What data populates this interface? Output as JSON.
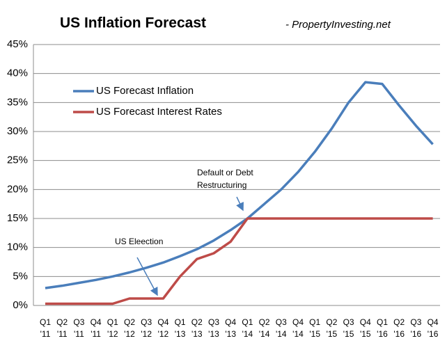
{
  "chart_data": {
    "type": "line",
    "title": "US Inflation Forecast",
    "subtitle": "- PropertyInvesting.net",
    "categories": [
      "Q1 '11",
      "Q2 '11",
      "Q3 '11",
      "Q4 '11",
      "Q1 '12",
      "Q2 '12",
      "Q3 '12",
      "Q4 '12",
      "Q1 '13",
      "Q2 '13",
      "Q3 '13",
      "Q4 '13",
      "Q1 '14",
      "Q2 '14",
      "Q3 '14",
      "Q4 '14",
      "Q1 '15",
      "Q2 '15",
      "Q3 '15",
      "Q4 '15",
      "Q1 '16",
      "Q2 '16",
      "Q3 '16",
      "Q4 '16"
    ],
    "series": [
      {
        "name": "US Forecast Inflation",
        "color": "#4a7ebb",
        "values": [
          3.0,
          3.4,
          3.9,
          4.4,
          5.0,
          5.7,
          6.5,
          7.4,
          8.5,
          9.7,
          11.2,
          13.0,
          15.0,
          17.5,
          20.0,
          23.0,
          26.5,
          30.5,
          35.0,
          38.5,
          38.2,
          34.5,
          31.0,
          27.8
        ]
      },
      {
        "name": "US Forecast Interest Rates",
        "color": "#be4b48",
        "values": [
          0.3,
          0.3,
          0.3,
          0.3,
          0.3,
          1.2,
          1.2,
          1.2,
          5.0,
          8.0,
          9.0,
          11.0,
          15.0,
          15.0,
          15.0,
          15.0,
          15.0,
          15.0,
          15.0,
          15.0,
          15.0,
          15.0,
          15.0,
          15.0
        ]
      }
    ],
    "ylim": [
      0,
      45
    ],
    "yticks": [
      {
        "value": 0,
        "label": "0%"
      },
      {
        "value": 5,
        "label": "5%"
      },
      {
        "value": 10,
        "label": "10%"
      },
      {
        "value": 15,
        "label": "15%"
      },
      {
        "value": 20,
        "label": "20%"
      },
      {
        "value": 25,
        "label": "25%"
      },
      {
        "value": 30,
        "label": "30%"
      },
      {
        "value": 35,
        "label": "35%"
      },
      {
        "value": 40,
        "label": "40%"
      },
      {
        "value": 45,
        "label": "45%"
      }
    ],
    "grid": true,
    "annotations": [
      "Default or Debt Restructuring",
      "US Eleection"
    ]
  }
}
